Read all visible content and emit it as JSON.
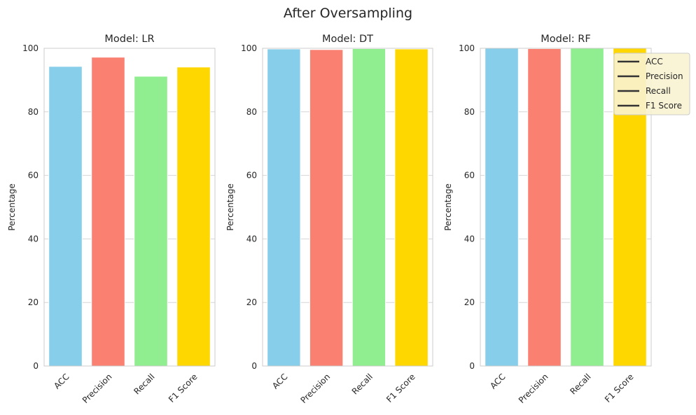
{
  "figure": {
    "title": "After Oversampling"
  },
  "chart_data": [
    {
      "type": "bar",
      "title": "Model: LR",
      "categories": [
        "ACC",
        "Precision",
        "Recall",
        "F1 Score"
      ],
      "values": [
        94.3,
        97.2,
        91.2,
        94.1
      ],
      "ylabel": "Percentage",
      "ylim": [
        0,
        100
      ],
      "yticks": [
        0,
        20,
        40,
        60,
        80,
        100
      ],
      "grid": true
    },
    {
      "type": "bar",
      "title": "Model: DT",
      "categories": [
        "ACC",
        "Precision",
        "Recall",
        "F1 Score"
      ],
      "values": [
        99.8,
        99.6,
        99.9,
        99.8
      ],
      "ylabel": "Percentage",
      "ylim": [
        0,
        100
      ],
      "yticks": [
        0,
        20,
        40,
        60,
        80,
        100
      ],
      "grid": true
    },
    {
      "type": "bar",
      "title": "Model: RF",
      "categories": [
        "ACC",
        "Precision",
        "Recall",
        "F1 Score"
      ],
      "values": [
        100,
        99.9,
        100,
        100
      ],
      "ylabel": "Percentage",
      "ylim": [
        0,
        100
      ],
      "yticks": [
        0,
        20,
        40,
        60,
        80,
        100
      ],
      "grid": true,
      "legend": {
        "placement": "upper-right",
        "entries": [
          "ACC",
          "Precision",
          "Recall",
          "F1 Score"
        ]
      }
    }
  ],
  "colors": {
    "bars": [
      "#87ceeb",
      "#fa8072",
      "#90ee90",
      "#ffd700"
    ],
    "legend_line": "#333333",
    "legend_bg": "#f8f3d2"
  }
}
